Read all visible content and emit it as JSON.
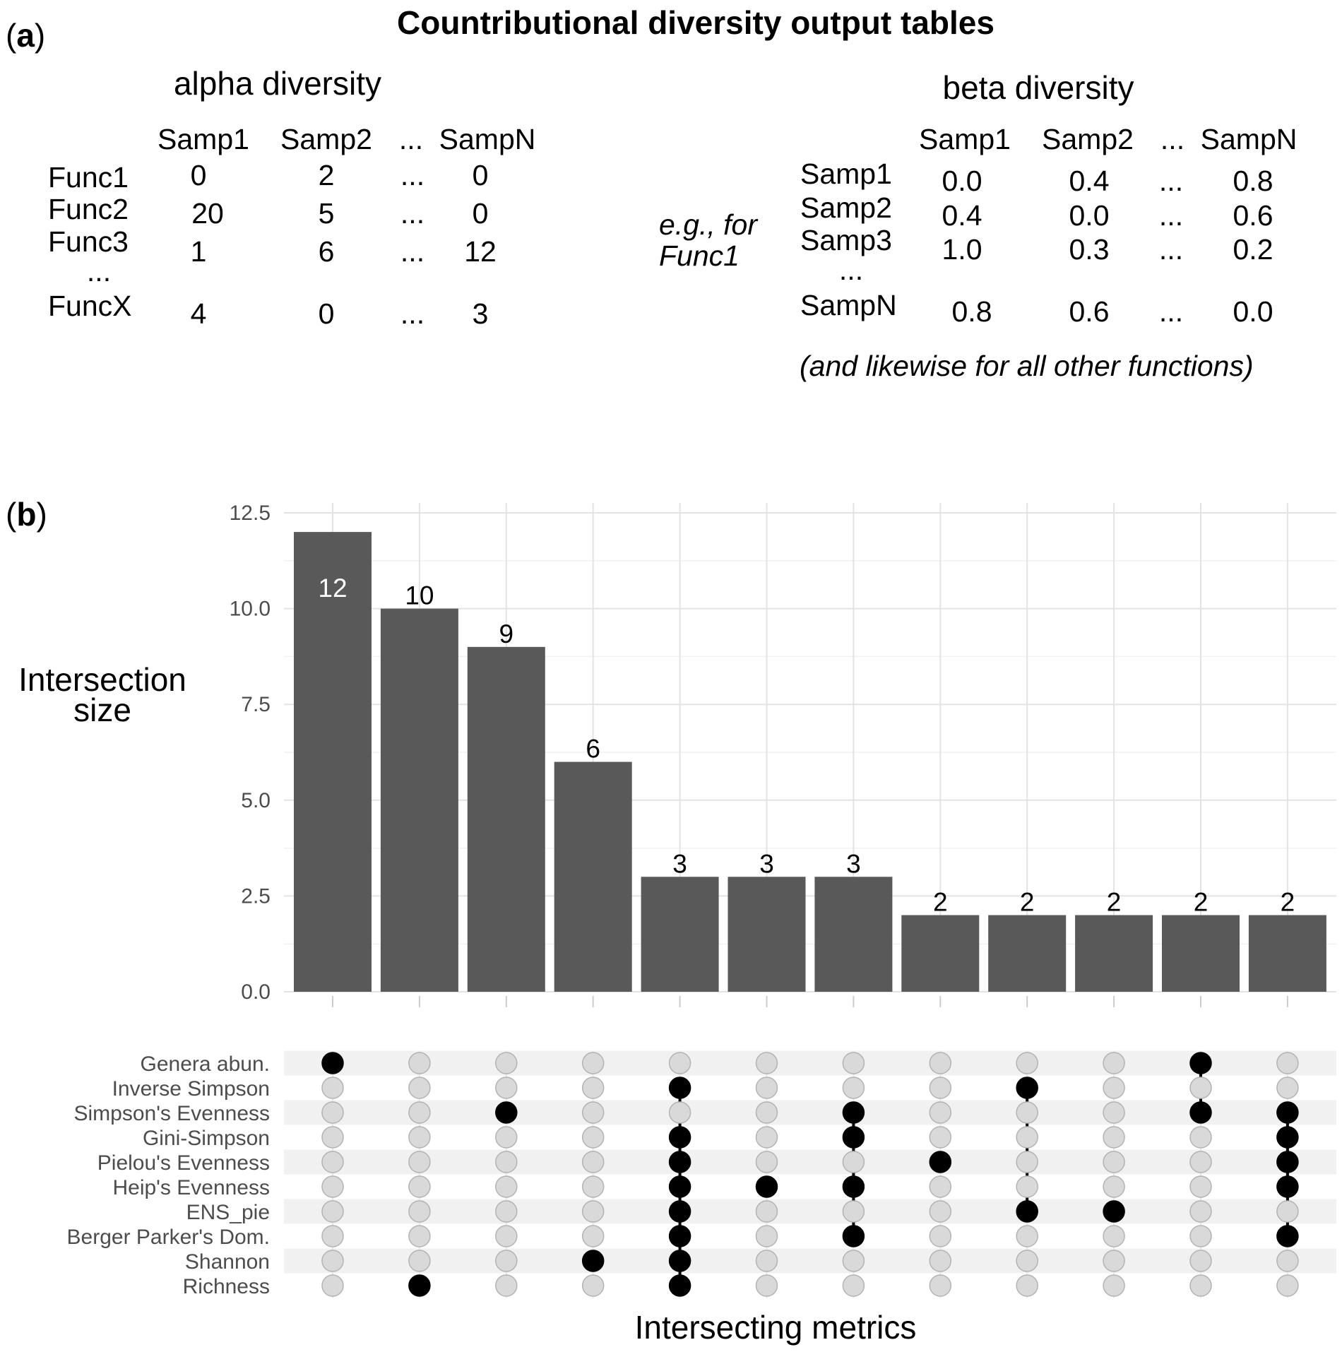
{
  "panel_a": {
    "label_open": "(",
    "label_letter": "a",
    "label_close": ")",
    "title": "Countributional diversity output tables",
    "alpha": {
      "heading": "alpha diversity",
      "columns": [
        "Samp1",
        "Samp2",
        "...",
        "SampN"
      ],
      "rows": [
        {
          "name": "Func1",
          "values": [
            "0",
            "2",
            "...",
            "0"
          ]
        },
        {
          "name": "Func2",
          "values": [
            "20",
            "5",
            "...",
            "0"
          ]
        },
        {
          "name": "Func3",
          "values": [
            "1",
            "6",
            "...",
            "12"
          ]
        },
        {
          "name": "...",
          "values": [
            "",
            "",
            "",
            ""
          ]
        },
        {
          "name": "FuncX",
          "values": [
            "4",
            "0",
            "...",
            "3"
          ]
        }
      ]
    },
    "example_note_line1": "e.g., for",
    "example_note_line2": "Func1",
    "beta": {
      "heading": "beta diversity",
      "columns": [
        "Samp1",
        "Samp2",
        "...",
        "SampN"
      ],
      "rows": [
        {
          "name": "Samp1",
          "values": [
            "0.0",
            "0.4",
            "...",
            "0.8"
          ]
        },
        {
          "name": "Samp2",
          "values": [
            "0.4",
            "0.0",
            "...",
            "0.6"
          ]
        },
        {
          "name": "Samp3",
          "values": [
            "1.0",
            "0.3",
            "...",
            "0.2"
          ]
        },
        {
          "name": "...",
          "values": [
            "",
            "",
            "",
            ""
          ]
        },
        {
          "name": "SampN",
          "values": [
            "0.8",
            "0.6",
            "...",
            "0.0"
          ]
        }
      ],
      "footnote": "(and likewise for all other functions)"
    }
  },
  "panel_b": {
    "label_open": "(",
    "label_letter": "b",
    "label_close": ")"
  },
  "chart_data": {
    "type": "bar",
    "subtype": "upset",
    "ylabel_line1": "Intersection",
    "ylabel_line2": "size",
    "xlabel": "Intersecting metrics",
    "ylim": [
      0,
      12.5
    ],
    "yticks": [
      "0.0",
      "2.5",
      "5.0",
      "7.5",
      "10.0",
      "12.5"
    ],
    "grid": true,
    "bar_color": "#595959",
    "values": [
      12,
      10,
      9,
      6,
      3,
      3,
      3,
      2,
      2,
      2,
      2,
      2
    ],
    "value_labels": [
      "12",
      "10",
      "9",
      "6",
      "3",
      "3",
      "3",
      "2",
      "2",
      "2",
      "2",
      "2"
    ],
    "sets": [
      "Genera abun.",
      "Inverse Simpson",
      "Simpson's Evenness",
      "Gini-Simpson",
      "Pielou's Evenness",
      "Heip's Evenness",
      "ENS_pie",
      "Berger Parker's Dom.",
      "Shannon",
      "Richness"
    ],
    "intersections": [
      [
        "Genera abun."
      ],
      [
        "Richness"
      ],
      [
        "Simpson's Evenness"
      ],
      [
        "Shannon"
      ],
      [
        "Inverse Simpson",
        "Gini-Simpson",
        "Pielou's Evenness",
        "Heip's Evenness",
        "ENS_pie",
        "Berger Parker's Dom.",
        "Shannon",
        "Richness"
      ],
      [
        "Heip's Evenness"
      ],
      [
        "Simpson's Evenness",
        "Gini-Simpson",
        "Heip's Evenness",
        "Berger Parker's Dom."
      ],
      [
        "Pielou's Evenness"
      ],
      [
        "Inverse Simpson",
        "ENS_pie"
      ],
      [
        "ENS_pie"
      ],
      [
        "Genera abun.",
        "Simpson's Evenness"
      ],
      [
        "Simpson's Evenness",
        "Gini-Simpson",
        "Pielou's Evenness",
        "Heip's Evenness",
        "Berger Parker's Dom."
      ]
    ]
  }
}
